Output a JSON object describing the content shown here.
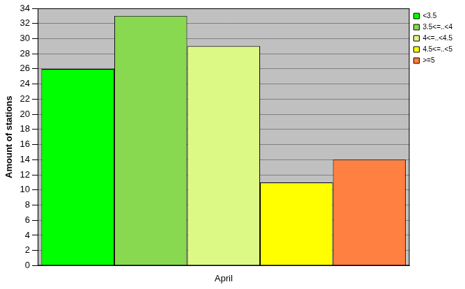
{
  "chart_data": {
    "type": "bar",
    "y_label": "Amount of stations",
    "categories": [
      "April"
    ],
    "series": [
      {
        "name": "<3.5",
        "color": "#00ff00",
        "values": [
          26
        ]
      },
      {
        "name": "3.5<=..<4",
        "color": "#88d850",
        "values": [
          33
        ]
      },
      {
        "name": "4<=..<4.5",
        "color": "#ddf985",
        "values": [
          29
        ]
      },
      {
        "name": "4.5<=..<5",
        "color": "#ffff00",
        "values": [
          11
        ]
      },
      {
        "name": ">=5",
        "color": "#ff8040",
        "values": [
          14
        ]
      }
    ],
    "ylim": [
      0,
      34
    ],
    "yticks": [
      0,
      2,
      4,
      6,
      8,
      10,
      12,
      14,
      16,
      18,
      20,
      22,
      24,
      26,
      28,
      30,
      32,
      34
    ],
    "grid": true,
    "legend": "top-right"
  }
}
